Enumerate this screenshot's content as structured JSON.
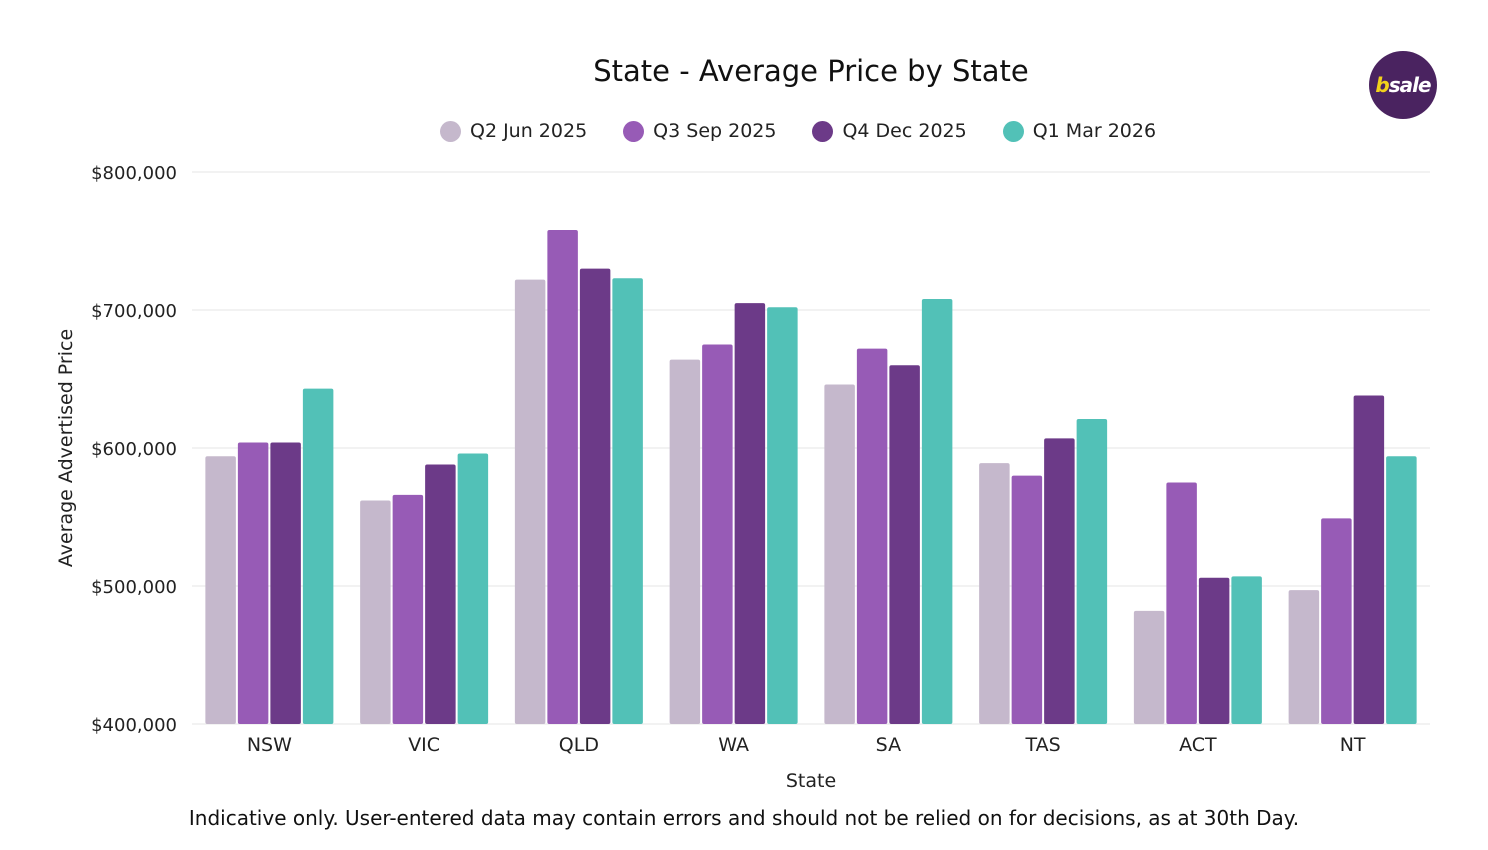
{
  "chart_data": {
    "type": "bar",
    "title": "State - Average Price by State",
    "xlabel": "State",
    "ylabel": "Average Advertised Price",
    "ylim": [
      400000,
      800000
    ],
    "yticks": [
      400000,
      500000,
      600000,
      700000,
      800000
    ],
    "ytick_labels": [
      "$400,000",
      "$500,000",
      "$600,000",
      "$700,000",
      "$800,000"
    ],
    "grid": true,
    "legend_position": "top",
    "categories": [
      "NSW",
      "VIC",
      "QLD",
      "WA",
      "SA",
      "TAS",
      "ACT",
      "NT"
    ],
    "series": [
      {
        "name": "Q2 Jun 2025",
        "color": "#c5b8cc",
        "values": [
          594000,
          562000,
          722000,
          664000,
          646000,
          589000,
          482000,
          497000
        ]
      },
      {
        "name": "Q3 Sep 2025",
        "color": "#975bb6",
        "values": [
          604000,
          566000,
          758000,
          675000,
          672000,
          580000,
          575000,
          549000
        ]
      },
      {
        "name": "Q4 Dec 2025",
        "color": "#6c3a88",
        "values": [
          604000,
          588000,
          730000,
          705000,
          660000,
          607000,
          506000,
          638000
        ]
      },
      {
        "name": "Q1 Mar 2026",
        "color": "#52c1b7",
        "values": [
          643000,
          596000,
          723000,
          702000,
          708000,
          621000,
          507000,
          594000
        ]
      }
    ]
  },
  "footer": "Indicative only. User-entered data may contain errors and should not be relied on for decisions, as at 30th Day.",
  "logo": {
    "b": "b",
    "rest": "sale"
  }
}
